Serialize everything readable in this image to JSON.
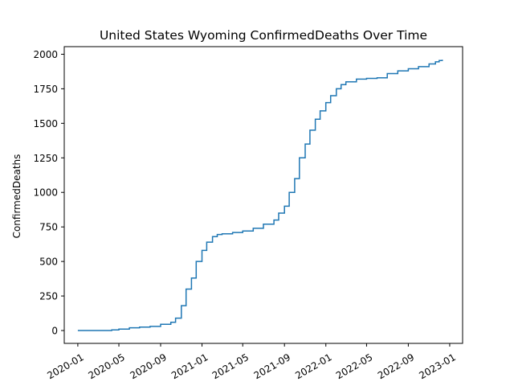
{
  "chart_data": {
    "type": "line",
    "title": "United States Wyoming ConfirmedDeaths Over Time",
    "xlabel": "",
    "ylabel": "ConfirmedDeaths",
    "x_ticks": [
      "2020-01",
      "2020-05",
      "2020-09",
      "2021-01",
      "2021-05",
      "2021-09",
      "2022-01",
      "2022-05",
      "2022-09",
      "2023-01"
    ],
    "y_ticks": [
      0,
      250,
      500,
      750,
      1000,
      1250,
      1500,
      1750,
      2000
    ],
    "xlim": [
      "2019-11-22",
      "2023-02-08"
    ],
    "ylim": [
      -93,
      2055
    ],
    "grid": false,
    "color": "#1f77b4",
    "series": [
      {
        "x": [
          "2020-01-01",
          "2020-03-15",
          "2020-04-10",
          "2020-05-01",
          "2020-06-01",
          "2020-07-01",
          "2020-08-01",
          "2020-09-01",
          "2020-10-01",
          "2020-10-15",
          "2020-11-01",
          "2020-11-15",
          "2020-12-01",
          "2020-12-15",
          "2021-01-01",
          "2021-01-15",
          "2021-02-01",
          "2021-02-15",
          "2021-03-01",
          "2021-04-01",
          "2021-05-01",
          "2021-06-01",
          "2021-07-01",
          "2021-08-01",
          "2021-08-15",
          "2021-09-01",
          "2021-09-15",
          "2021-10-01",
          "2021-10-15",
          "2021-11-01",
          "2021-11-15",
          "2021-12-01",
          "2021-12-15",
          "2022-01-01",
          "2022-01-15",
          "2022-02-01",
          "2022-02-15",
          "2022-03-01",
          "2022-04-01",
          "2022-05-01",
          "2022-06-01",
          "2022-07-01",
          "2022-08-01",
          "2022-09-01",
          "2022-10-01",
          "2022-11-01",
          "2022-11-20",
          "2022-12-01",
          "2022-12-10"
        ],
        "y": [
          0,
          0,
          5,
          10,
          20,
          25,
          30,
          45,
          60,
          90,
          180,
          300,
          380,
          500,
          580,
          640,
          680,
          695,
          700,
          710,
          720,
          740,
          770,
          800,
          850,
          900,
          1000,
          1100,
          1250,
          1350,
          1450,
          1530,
          1590,
          1650,
          1700,
          1750,
          1780,
          1800,
          1820,
          1825,
          1830,
          1860,
          1880,
          1895,
          1910,
          1930,
          1945,
          1955,
          1960
        ]
      }
    ]
  }
}
